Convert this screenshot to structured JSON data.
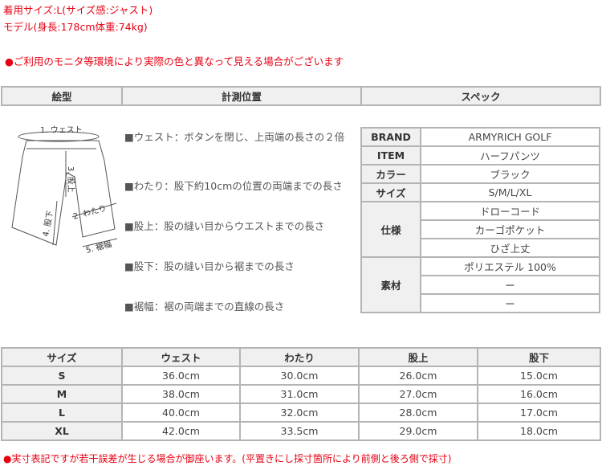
{
  "notes": {
    "size_worn": "着用サイズ:L(サイズ感:ジャスト)",
    "model": "モデル(身長:178cm体重:74kg)",
    "color_warning": "●ご利用のモニタ等環境により実際の色と異なって見える場合がございます",
    "footer": "●実寸表記ですが若干誤差が生じる場合が御座います。(平置きにし採寸箇所により前側と後ろ側で採寸)"
  },
  "header": {
    "col1": "絵型",
    "col2": "計測位置",
    "col3": "スペック"
  },
  "diagram": {
    "labels": [
      "1. ウェスト",
      "2. わたり",
      "3. 股上",
      "4. 股下",
      "5. 裾幅"
    ]
  },
  "measurements": [
    "■ウェスト：ボタンを閉じ、上両端の長さの２倍",
    "■わたり：股下約10cmの位置の両端までの長さ",
    "■股上：股の縫い目からウエストまでの長さ",
    "■股下：股の縫い目から裾までの長さ",
    "■裾幅：裾の両端までの直線の長さ"
  ],
  "spec": {
    "brand_label": "BRAND",
    "brand": "ARMYRICH GOLF",
    "item_label": "ITEM",
    "item": "ハーフパンツ",
    "color_label": "カラー",
    "color": "ブラック",
    "size_label": "サイズ",
    "sizes": "S/M/L/XL",
    "features_label": "仕様",
    "features": [
      "ドローコード",
      "カーゴポケット",
      "ひざ上丈"
    ],
    "material_label": "素材",
    "materials": [
      "ポリエステル 100%",
      "ー",
      "ー"
    ]
  },
  "size_table": {
    "headers": [
      "サイズ",
      "ウェスト",
      "わたり",
      "股上",
      "股下"
    ],
    "rows": [
      [
        "S",
        "36.0cm",
        "30.0cm",
        "26.0cm",
        "15.0cm"
      ],
      [
        "M",
        "38.0cm",
        "31.0cm",
        "27.0cm",
        "16.0cm"
      ],
      [
        "L",
        "40.0cm",
        "32.0cm",
        "28.0cm",
        "17.0cm"
      ],
      [
        "XL",
        "42.0cm",
        "33.5cm",
        "29.0cm",
        "18.0cm"
      ]
    ]
  },
  "colors": {
    "accent": "#e60012",
    "header_bg": "#f0f0f0",
    "border": "#b4b4b4"
  }
}
